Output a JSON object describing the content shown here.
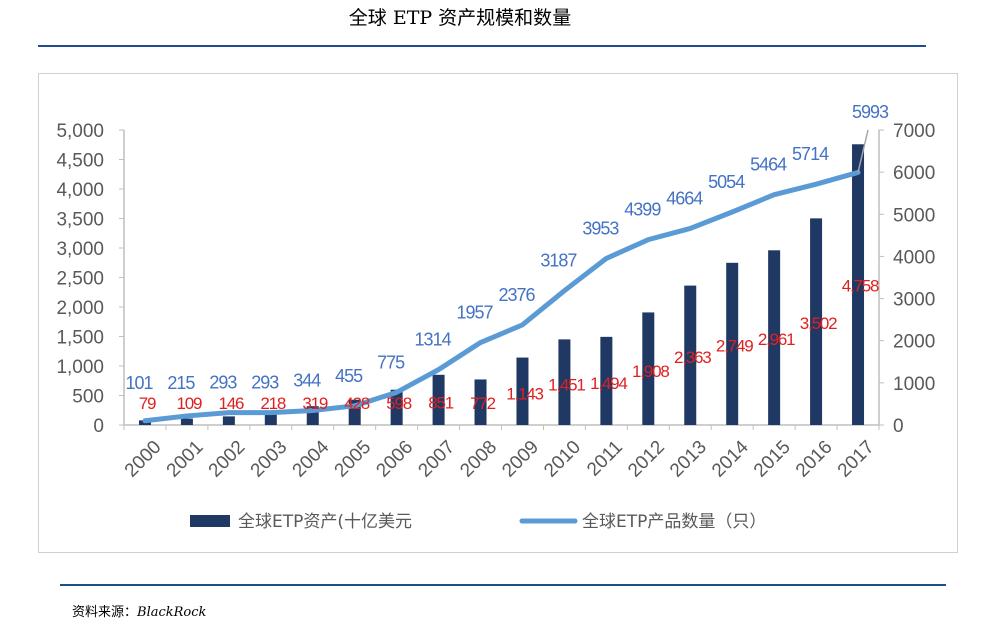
{
  "title": "全球 ETP 资产规模和数量",
  "source_label": "资料来源：",
  "source_name": "BlackRock",
  "chart_data": {
    "type": "bar+line",
    "categories": [
      "2000",
      "2001",
      "2002",
      "2003",
      "2004",
      "2005",
      "2006",
      "2007",
      "2008",
      "2009",
      "2010",
      "2011",
      "2012",
      "2013",
      "2014",
      "2015",
      "2016",
      "2017"
    ],
    "series": [
      {
        "name": "全球ETP资产(十亿美元",
        "type": "bar",
        "axis": "left",
        "color": "#1f3864",
        "label_color": "#e02020",
        "values": [
          79,
          109,
          146,
          218,
          319,
          428,
          598,
          851,
          772,
          1143,
          1451,
          1494,
          1908,
          2363,
          2749,
          2961,
          3502,
          4758
        ]
      },
      {
        "name": "全球ETP产品数量（只）",
        "type": "line",
        "axis": "right",
        "color": "#5b9bd5",
        "label_color": "#4472c4",
        "values": [
          101,
          215,
          293,
          293,
          344,
          455,
          775,
          1314,
          1957,
          2376,
          3187,
          3953,
          4399,
          4664,
          5054,
          5464,
          5714,
          5993
        ]
      }
    ],
    "left_axis": {
      "min": 0,
      "max": 5000,
      "step": 500,
      "ticks": [
        "0",
        "500",
        "1,000",
        "1,500",
        "2,000",
        "2,500",
        "3,000",
        "3,500",
        "4,000",
        "4,500",
        "5,000"
      ]
    },
    "right_axis": {
      "min": 0,
      "max": 7000,
      "step": 1000,
      "ticks": [
        "0",
        "1000",
        "2000",
        "3000",
        "4000",
        "5000",
        "6000",
        "7000"
      ]
    },
    "legend_position": "bottom"
  }
}
